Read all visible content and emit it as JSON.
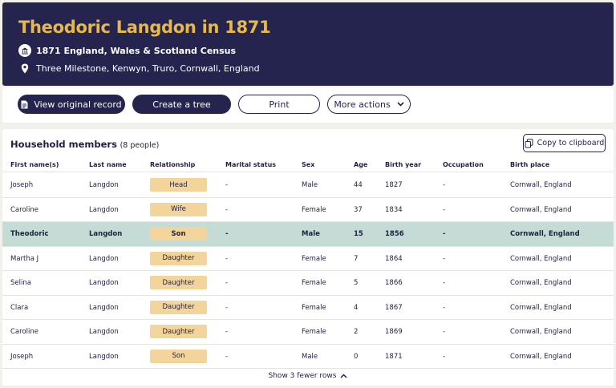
{
  "header": {
    "title": "Theodoric Langdon in 1871",
    "census": "1871 England, Wales & Scotland Census",
    "place": "Three Milestone, Kenwyn, Truro, Cornwall, England",
    "title_color": "#e8b94a",
    "background": "#24244f"
  },
  "toolbar": {
    "view_original": "View original record",
    "create_tree": "Create a tree",
    "print": "Print",
    "more_actions": "More actions"
  },
  "household": {
    "title": "Household members",
    "count": "(8 people)",
    "copy_label": "Copy to clipboard",
    "columns": [
      "First name(s)",
      "Last name",
      "Relationship",
      "Marital status",
      "Sex",
      "Age",
      "Birth year",
      "Occupation",
      "Birth place"
    ],
    "rows": [
      {
        "first": "Joseph",
        "last": "Langdon",
        "relationship": "Head",
        "marital": "-",
        "sex": "Male",
        "age": "44",
        "birth_year": "1827",
        "occupation": "-",
        "birth_place": "Cornwall, England",
        "highlighted": false
      },
      {
        "first": "Caroline",
        "last": "Langdon",
        "relationship": "Wife",
        "marital": "-",
        "sex": "Female",
        "age": "37",
        "birth_year": "1834",
        "occupation": "-",
        "birth_place": "Cornwall, England",
        "highlighted": false
      },
      {
        "first": "Theodoric",
        "last": "Langdon",
        "relationship": "Son",
        "marital": "-",
        "sex": "Male",
        "age": "15",
        "birth_year": "1856",
        "occupation": "-",
        "birth_place": "Cornwall, England",
        "highlighted": true
      },
      {
        "first": "Martha J",
        "last": "Langdon",
        "relationship": "Daughter",
        "marital": "-",
        "sex": "Female",
        "age": "7",
        "birth_year": "1864",
        "occupation": "-",
        "birth_place": "Cornwall, England",
        "highlighted": false
      },
      {
        "first": "Selina",
        "last": "Langdon",
        "relationship": "Daughter",
        "marital": "-",
        "sex": "Female",
        "age": "5",
        "birth_year": "1866",
        "occupation": "-",
        "birth_place": "Cornwall, England",
        "highlighted": false
      },
      {
        "first": "Clara",
        "last": "Langdon",
        "relationship": "Daughter",
        "marital": "-",
        "sex": "Female",
        "age": "4",
        "birth_year": "1867",
        "occupation": "-",
        "birth_place": "Cornwall, England",
        "highlighted": false
      },
      {
        "first": "Caroline",
        "last": "Langdon",
        "relationship": "Daughter",
        "marital": "-",
        "sex": "Female",
        "age": "2",
        "birth_year": "1869",
        "occupation": "-",
        "birth_place": "Cornwall, England",
        "highlighted": false
      },
      {
        "first": "Joseph",
        "last": "Langdon",
        "relationship": "Son",
        "marital": "-",
        "sex": "Male",
        "age": "0",
        "birth_year": "1871",
        "occupation": "-",
        "birth_place": "Cornwall, England",
        "highlighted": false
      }
    ],
    "show_fewer": "Show 3 fewer rows",
    "badge_color": "#f3d49a",
    "highlight_color": "#c5dbd5"
  }
}
